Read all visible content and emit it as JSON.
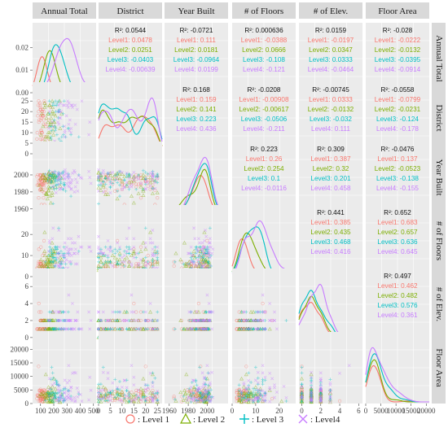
{
  "chart_data": {
    "type": "scatter-matrix",
    "variables": [
      "Annual Total",
      "District",
      "Year Built",
      "# of Floors",
      "# of Elev.",
      "Floor Area"
    ],
    "ranges": {
      "Annual Total": [
        40,
        520
      ],
      "District": [
        0,
        27
      ],
      "Year Built": [
        1955,
        2022
      ],
      "# of Floors": [
        0,
        27
      ],
      "# of Elev.": [
        -0.3,
        6.4
      ],
      "Floor Area": [
        0,
        21000
      ]
    },
    "ticks": {
      "Annual Total": [
        "100",
        "200",
        "300",
        "400",
        "500"
      ],
      "District": [
        "0",
        "5",
        "10",
        "15",
        "20",
        "25"
      ],
      "Year Built": [
        "1960",
        "1980",
        "2000"
      ],
      "# of Floors": [
        "0",
        "10",
        "20"
      ],
      "# of Elev.": [
        "0",
        "2",
        "4",
        "6"
      ],
      "Floor Area": [
        "0",
        "5000",
        "10000",
        "15000",
        "20000"
      ],
      "Annual Total density": [
        "0.00",
        "0.01",
        "0.02"
      ]
    },
    "tick_values": {
      "Annual Total": [
        100,
        200,
        300,
        400,
        500
      ],
      "District": [
        0,
        5,
        10,
        15,
        20,
        25
      ],
      "Year Built": [
        1960,
        1980,
        2000
      ],
      "# of Floors": [
        0,
        10,
        20
      ],
      "# of Elev.": [
        0,
        2,
        4,
        6
      ],
      "Floor Area": [
        0,
        5000,
        10000,
        15000,
        20000
      ],
      "Annual Total density": [
        0,
        0.01,
        0.02
      ]
    },
    "series": [
      {
        "name": "Level 1",
        "color": "#F8766D",
        "marker": "circle"
      },
      {
        "name": "Level 2",
        "color": "#7CAE00",
        "marker": "triangle"
      },
      {
        "name": "Level 3",
        "color": "#00BFC4",
        "marker": "plus"
      },
      {
        "name": "Level4",
        "color": "#C77CFF",
        "marker": "cross"
      }
    ],
    "legend_labels": [
      ": Level 1",
      ": Level 2",
      ": Level 3",
      ": Level4"
    ],
    "legend_position": "bottom",
    "correlations": [
      {
        "row": 0,
        "col": 1,
        "overall": "R²: 0.0544",
        "levels": [
          "Level1: 0.0478",
          "Level2: 0.0251",
          "Level3: -0.0403",
          "Level4: -0.00639"
        ]
      },
      {
        "row": 0,
        "col": 2,
        "overall": "R²: -0.0721",
        "levels": [
          "Level1: 0.111",
          "Level2: 0.0181",
          "Level3: -0.0964",
          "Level4: 0.0199"
        ]
      },
      {
        "row": 0,
        "col": 3,
        "overall": "R²: 0.000636",
        "levels": [
          "Level1: -0.0388",
          "Level2: 0.0666",
          "Level3: -0.108",
          "Level4: -0.121"
        ]
      },
      {
        "row": 0,
        "col": 4,
        "overall": "R²: 0.0159",
        "levels": [
          "Level1: -0.0197",
          "Level2: 0.0347",
          "Level3: 0.0333",
          "Level4: -0.0464"
        ]
      },
      {
        "row": 0,
        "col": 5,
        "overall": "R²: -0.028",
        "levels": [
          "Level1: -0.0222",
          "Level2: -0.0132",
          "Level3: -0.0395",
          "Level4: -0.0914"
        ]
      },
      {
        "row": 1,
        "col": 2,
        "overall": "R²: 0.168",
        "levels": [
          "Level1: 0.159",
          "Level2: 0.141",
          "Level3: 0.223",
          "Level4: 0.436"
        ]
      },
      {
        "row": 1,
        "col": 3,
        "overall": "R²: -0.0208",
        "levels": [
          "Level1: -0.00908",
          "Level2: -0.00617",
          "Level3: -0.0506",
          "Level4: -0.211"
        ]
      },
      {
        "row": 1,
        "col": 4,
        "overall": "R²: -0.00745",
        "levels": [
          "Level1: 0.0333",
          "Level2: -0.0132",
          "Level3: -0.032",
          "Level4: 0.111"
        ]
      },
      {
        "row": 1,
        "col": 5,
        "overall": "R²: -0.0558",
        "levels": [
          "Level1: -0.0799",
          "Level2: -0.0231",
          "Level3: -0.124",
          "Level4: -0.178"
        ]
      },
      {
        "row": 2,
        "col": 3,
        "overall": "R²: 0.223",
        "levels": [
          "Level1: 0.26",
          "Level2: 0.254",
          "Level3: 0.1",
          "Level4: -0.0116"
        ]
      },
      {
        "row": 2,
        "col": 4,
        "overall": "R²: 0.309",
        "levels": [
          "Level1: 0.387",
          "Level2: 0.32",
          "Level3: 0.201",
          "Level4: 0.458"
        ]
      },
      {
        "row": 2,
        "col": 5,
        "overall": "R²: -0.0476",
        "levels": [
          "Level1: 0.137",
          "Level2: -0.0523",
          "Level3: -0.138",
          "Level4: -0.155"
        ]
      },
      {
        "row": 3,
        "col": 4,
        "overall": "R²: 0.441",
        "levels": [
          "Level1: 0.385",
          "Level2: 0.435",
          "Level3: 0.468",
          "Level4: 0.416"
        ]
      },
      {
        "row": 3,
        "col": 5,
        "overall": "R²: 0.652",
        "levels": [
          "Level1: 0.683",
          "Level2: 0.657",
          "Level3: 0.636",
          "Level4: 0.645"
        ]
      },
      {
        "row": 4,
        "col": 5,
        "overall": "R²: 0.497",
        "levels": [
          "Level1: 0.462",
          "Level2: 0.482",
          "Level3: 0.576",
          "Level4: 0.361"
        ]
      }
    ],
    "level_centers": {
      "Annual Total": [
        110,
        170,
        230,
        300
      ],
      "Year Built": [
        2000,
        2003,
        2005,
        2006
      ],
      "# of Floors": [
        4,
        6,
        8,
        10
      ],
      "# of Elev.": [
        1,
        1,
        1.2,
        1.5
      ],
      "Floor Area": [
        3000,
        3500,
        4000,
        4500
      ]
    }
  }
}
